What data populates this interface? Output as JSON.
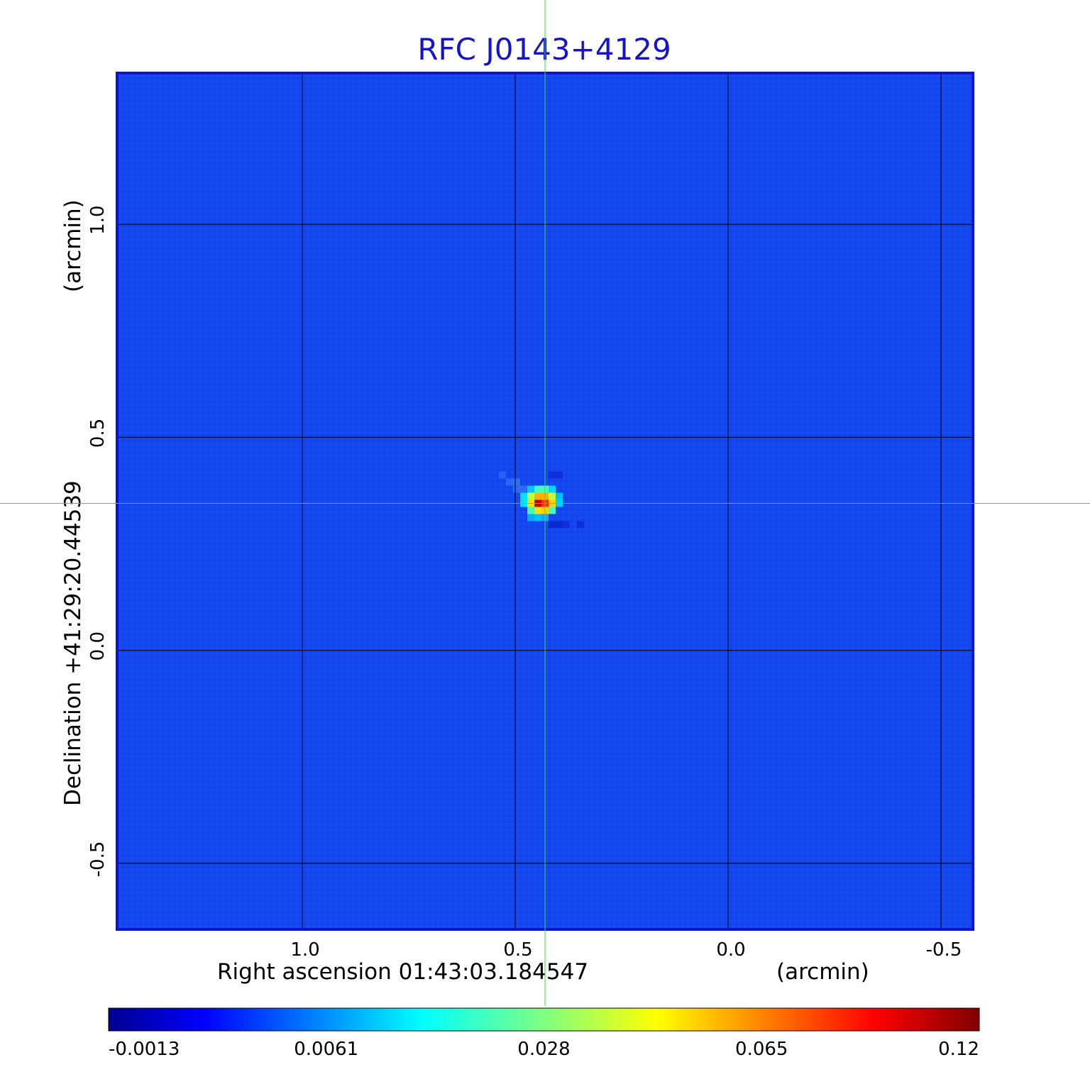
{
  "chart_data": {
    "type": "heatmap",
    "title": "RFC J0143+4129",
    "xlabel": "Right ascension  01:43:03.184547",
    "xlabel_unit": "(arcmin)",
    "ylabel": "Declination  +41:29:20.44539",
    "ylabel_unit": "(arcmin)",
    "x_ticks": [
      "1.0",
      "0.5",
      "0.0",
      "-0.5"
    ],
    "y_ticks": [
      "1.0",
      "0.5",
      "0.0",
      "-0.5"
    ],
    "x_tick_values": [
      1.0,
      0.5,
      0.0,
      -0.5
    ],
    "y_tick_values": [
      1.0,
      0.5,
      0.0,
      -0.5
    ],
    "xlim": [
      1.435,
      -0.575
    ],
    "ylim": [
      -0.655,
      1.355
    ],
    "grid": true,
    "crosshair": {
      "x": 0.43,
      "y": 0.345,
      "color": "#33dd33"
    },
    "source_peak": {
      "x": 0.43,
      "y": 0.345,
      "value": 0.12
    },
    "colorbar": {
      "ticks": [
        "-0.0013",
        "0.0061",
        "0.028",
        "0.065",
        "0.12"
      ],
      "min": -0.0013,
      "max": 0.12,
      "colormap": "jet"
    },
    "background_color": "#1446f0",
    "frame_color": "#0a14d2"
  }
}
